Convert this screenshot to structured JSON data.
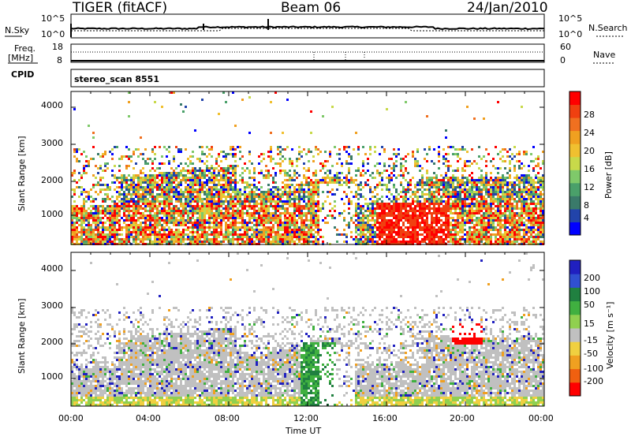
{
  "header": {
    "radar": "TIGER (fitACF)",
    "beam": "Beam 06",
    "date": "24/Jan/2010",
    "cpid_label": "CPID",
    "cpid_value": "stereo_scan 8551"
  },
  "top_panels": {
    "nsky_label": "N.Sky",
    "nsky_ticks": [
      "10^5",
      "10^0"
    ],
    "nsearch_label": "N.Search",
    "nsearch_ticks": [
      "10^5",
      "10^0"
    ],
    "freq_label_1": "Freq.",
    "freq_label_2": "[MHz]",
    "freq_ticks": [
      "18",
      "8"
    ],
    "nave_label": "Nave",
    "nave_ticks": [
      "60",
      "0"
    ]
  },
  "chart_data": [
    {
      "type": "heatmap",
      "name": "power",
      "ylabel": "Slant Range [km]",
      "ylim": [
        180,
        4500
      ],
      "yticks": [
        "4000",
        "3000",
        "2000",
        "1000"
      ],
      "xlim": [
        0,
        24
      ],
      "colorbar_label": "Power [dB]",
      "colorbar_ticks": [
        "28",
        "24",
        "20",
        "16",
        "12",
        "8",
        "4"
      ],
      "colors": [
        "#0000ff",
        "#2244aa",
        "#3a7a6a",
        "#4aa06a",
        "#7fc96a",
        "#c8d94a",
        "#f0c030",
        "#f0a020",
        "#f07020",
        "#f04010",
        "#ff0000"
      ],
      "range": [
        2,
        30
      ]
    },
    {
      "type": "heatmap",
      "name": "velocity",
      "ylabel": "Slant Range [km]",
      "xlabel": "Time UT",
      "ylim": [
        180,
        4500
      ],
      "yticks": [
        "4000",
        "3000",
        "2000",
        "1000"
      ],
      "xlim": [
        0,
        24
      ],
      "xticks": [
        "00:00",
        "04:00",
        "08:00",
        "12:00",
        "16:00",
        "20:00",
        "00:00"
      ],
      "colorbar_label": "Velocity [m s⁻¹]",
      "colorbar_ticks": [
        "200",
        "100",
        "50",
        "15",
        "-15",
        "-50",
        "-100",
        "-200"
      ],
      "colors": [
        "#2020c0",
        "#3050d0",
        "#208040",
        "#40b040",
        "#90d050",
        "#c0c0c0",
        "#f0d040",
        "#f0a020",
        "#f06010",
        "#ff0000"
      ],
      "range": [
        -250,
        250
      ]
    }
  ]
}
